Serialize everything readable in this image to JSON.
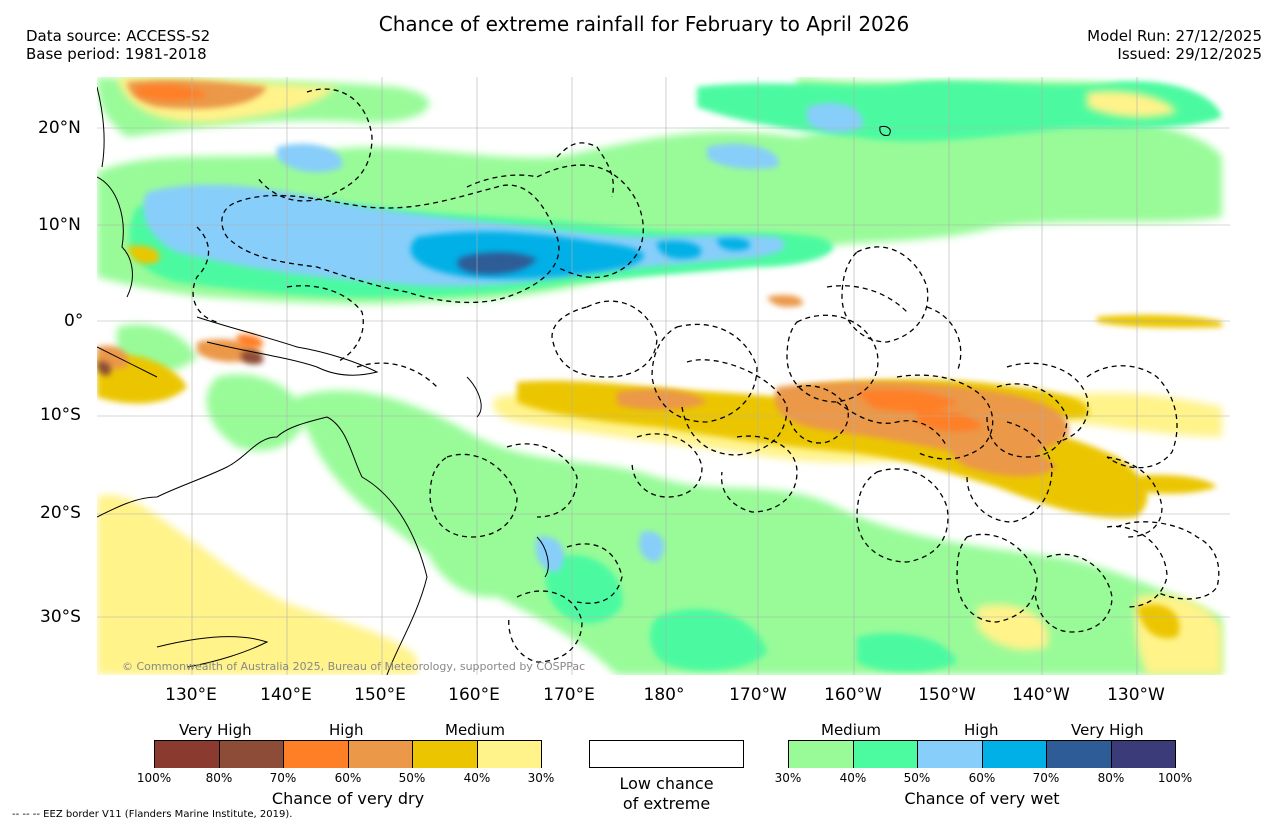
{
  "title": "Chance of extreme rainfall for February to April 2026",
  "meta": {
    "data_source": "Data source: ACCESS-S2",
    "base_period": "Base period: 1981-2018",
    "model_run": "Model Run: 27/12/2025",
    "issued": "Issued: 29/12/2025"
  },
  "map": {
    "lat_labels": [
      "20°N",
      "10°N",
      "0°",
      "10°S",
      "20°S",
      "30°S"
    ],
    "lon_labels": [
      "130°E",
      "140°E",
      "150°E",
      "160°E",
      "170°E",
      "180°",
      "170°W",
      "160°W",
      "150°W",
      "140°W",
      "130°W"
    ],
    "copyright": "© Commonwealth of Australia 2025, Bureau of Meteorology, supported by COSPPac",
    "colors": {
      "ocean": "#ffffff",
      "grid": "#b0b0b0",
      "coast": "#000000",
      "eez": "#000000"
    }
  },
  "legend": {
    "dry": {
      "categories": [
        "Very High",
        "High",
        "Medium"
      ],
      "percent_labels": [
        "100%",
        "80%",
        "70%",
        "60%",
        "50%",
        "40%",
        "30%"
      ],
      "colors": [
        "#8b3a2f",
        "#8c4c38",
        "#ff7f27",
        "#eb9849",
        "#ebc600",
        "#fff38a"
      ],
      "label": "Chance of very dry"
    },
    "low": {
      "line1": "Low chance",
      "line2": "of extreme",
      "color": "#ffffff"
    },
    "wet": {
      "categories": [
        "Medium",
        "High",
        "Very High"
      ],
      "percent_labels": [
        "30%",
        "40%",
        "50%",
        "60%",
        "70%",
        "80%",
        "100%"
      ],
      "colors": [
        "#98fb98",
        "#4cfaa0",
        "#87cefa",
        "#00b0e6",
        "#2d5c96",
        "#3b3b79"
      ],
      "label": "Chance of very wet"
    }
  },
  "eez_note": "-- -- -- EEZ border V11 (Flanders Marine Institute, 2019)."
}
